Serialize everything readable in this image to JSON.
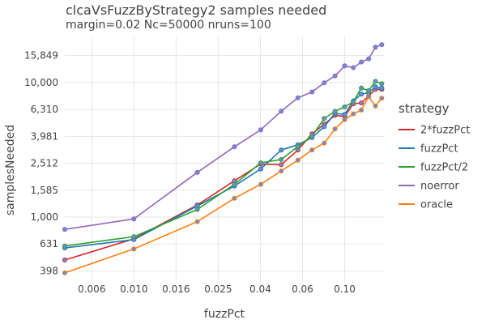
{
  "chart_data": {
    "type": "line",
    "title": "clcaVsFuzzByStrategy2 samples needed",
    "subtitle": "margin=0.02 Nc=50000 nruns=100",
    "xlabel": "fuzzPct",
    "ylabel": "samplesNeeded",
    "x_scale": "log",
    "y_scale": "log",
    "xlim": [
      0.0047,
      0.155
    ],
    "ylim": [
      330,
      22000
    ],
    "x_ticks": [
      {
        "value": 0.00631,
        "label": "0.006"
      },
      {
        "value": 0.01,
        "label": "0.010"
      },
      {
        "value": 0.01585,
        "label": "0.016"
      },
      {
        "value": 0.02512,
        "label": "0.025"
      },
      {
        "value": 0.03981,
        "label": "0.04"
      },
      {
        "value": 0.0631,
        "label": "0.06"
      },
      {
        "value": 0.1,
        "label": "0.10"
      }
    ],
    "y_ticks": [
      {
        "value": 398,
        "label": "398"
      },
      {
        "value": 631,
        "label": "631"
      },
      {
        "value": 1000,
        "label": "1,000"
      },
      {
        "value": 1585,
        "label": "1,585"
      },
      {
        "value": 2512,
        "label": "2,512"
      },
      {
        "value": 3981,
        "label": "3,981"
      },
      {
        "value": 6310,
        "label": "6,310"
      },
      {
        "value": 10000,
        "label": "10,000"
      },
      {
        "value": 15849,
        "label": "15,849"
      }
    ],
    "grid": true,
    "legend_title": "strategy",
    "legend_position": "right",
    "marker_color": "#6b8cd6",
    "series": [
      {
        "name": "2*fuzzPct",
        "color": "#d62728",
        "x": [
          0.0047,
          0.01,
          0.02,
          0.03,
          0.04,
          0.05,
          0.06,
          0.07,
          0.08,
          0.09,
          0.1,
          0.11,
          0.12,
          0.13,
          0.14,
          0.15
        ],
        "y": [
          480,
          690,
          1230,
          1860,
          2480,
          2450,
          3150,
          4150,
          4900,
          5700,
          5600,
          6950,
          7050,
          7950,
          8900,
          8900
        ]
      },
      {
        "name": "fuzzPct",
        "color": "#1f77b4",
        "x": [
          0.0047,
          0.01,
          0.02,
          0.03,
          0.04,
          0.05,
          0.06,
          0.07,
          0.08,
          0.09,
          0.1,
          0.11,
          0.12,
          0.13,
          0.14,
          0.15
        ],
        "y": [
          590,
          680,
          1210,
          1700,
          2280,
          3150,
          3450,
          3900,
          4700,
          5900,
          5800,
          7300,
          8200,
          8400,
          9300,
          9100
        ]
      },
      {
        "name": "fuzzPct/2",
        "color": "#2ca02c",
        "x": [
          0.0047,
          0.01,
          0.02,
          0.03,
          0.04,
          0.05,
          0.06,
          0.07,
          0.08,
          0.09,
          0.1,
          0.11,
          0.12,
          0.13,
          0.14,
          0.15
        ],
        "y": [
          610,
          715,
          1140,
          1750,
          2530,
          2680,
          3350,
          4000,
          5400,
          6100,
          6600,
          7200,
          9100,
          8700,
          10200,
          9800
        ]
      },
      {
        "name": "noerror",
        "color": "#9467bd",
        "x": [
          0.0047,
          0.01,
          0.02,
          0.03,
          0.04,
          0.05,
          0.06,
          0.07,
          0.08,
          0.09,
          0.1,
          0.11,
          0.12,
          0.13,
          0.14,
          0.15
        ],
        "y": [
          810,
          970,
          2150,
          3330,
          4450,
          6130,
          7700,
          8500,
          9950,
          11200,
          13300,
          12900,
          14200,
          15000,
          18300,
          19100
        ]
      },
      {
        "name": "oracle",
        "color": "#ff7f0e",
        "x": [
          0.0047,
          0.01,
          0.02,
          0.03,
          0.04,
          0.05,
          0.06,
          0.07,
          0.08,
          0.09,
          0.1,
          0.11,
          0.12,
          0.13,
          0.14,
          0.15
        ],
        "y": [
          385,
          580,
          925,
          1380,
          1750,
          2200,
          2650,
          3150,
          3550,
          4520,
          5300,
          5850,
          6250,
          7850,
          6700,
          7650
        ]
      }
    ]
  }
}
